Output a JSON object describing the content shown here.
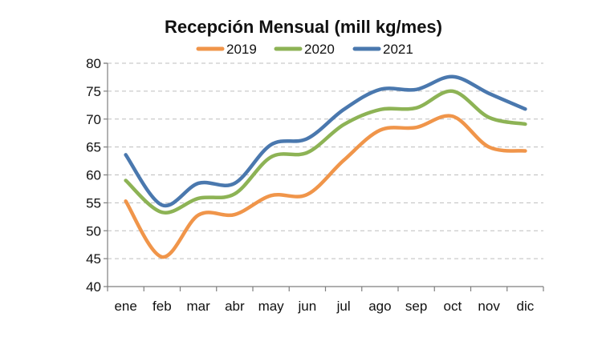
{
  "chart_data": {
    "type": "line",
    "title": "Recepción Mensual (mill kg/mes)",
    "xlabel": "",
    "ylabel": "",
    "categories": [
      "ene",
      "feb",
      "mar",
      "abr",
      "may",
      "jun",
      "jul",
      "ago",
      "sep",
      "oct",
      "nov",
      "dic"
    ],
    "ylim": [
      40,
      80
    ],
    "yticks": [
      40,
      45,
      50,
      55,
      60,
      65,
      70,
      75,
      80
    ],
    "grid": true,
    "legend_position": "top",
    "series": [
      {
        "name": "2019",
        "color": "#F0954A",
        "values": [
          55.3,
          45.3,
          52.8,
          52.9,
          56.3,
          56.5,
          62.6,
          68.0,
          68.5,
          70.5,
          65.0,
          64.3
        ]
      },
      {
        "name": "2020",
        "color": "#8DB355",
        "values": [
          59.0,
          53.3,
          55.8,
          56.6,
          63.2,
          64.0,
          69.0,
          71.7,
          72.0,
          75.0,
          70.3,
          69.1
        ]
      },
      {
        "name": "2021",
        "color": "#4A78AE",
        "values": [
          63.6,
          54.6,
          58.5,
          58.5,
          65.4,
          66.5,
          71.7,
          75.3,
          75.3,
          77.6,
          74.6,
          71.8
        ]
      }
    ]
  }
}
